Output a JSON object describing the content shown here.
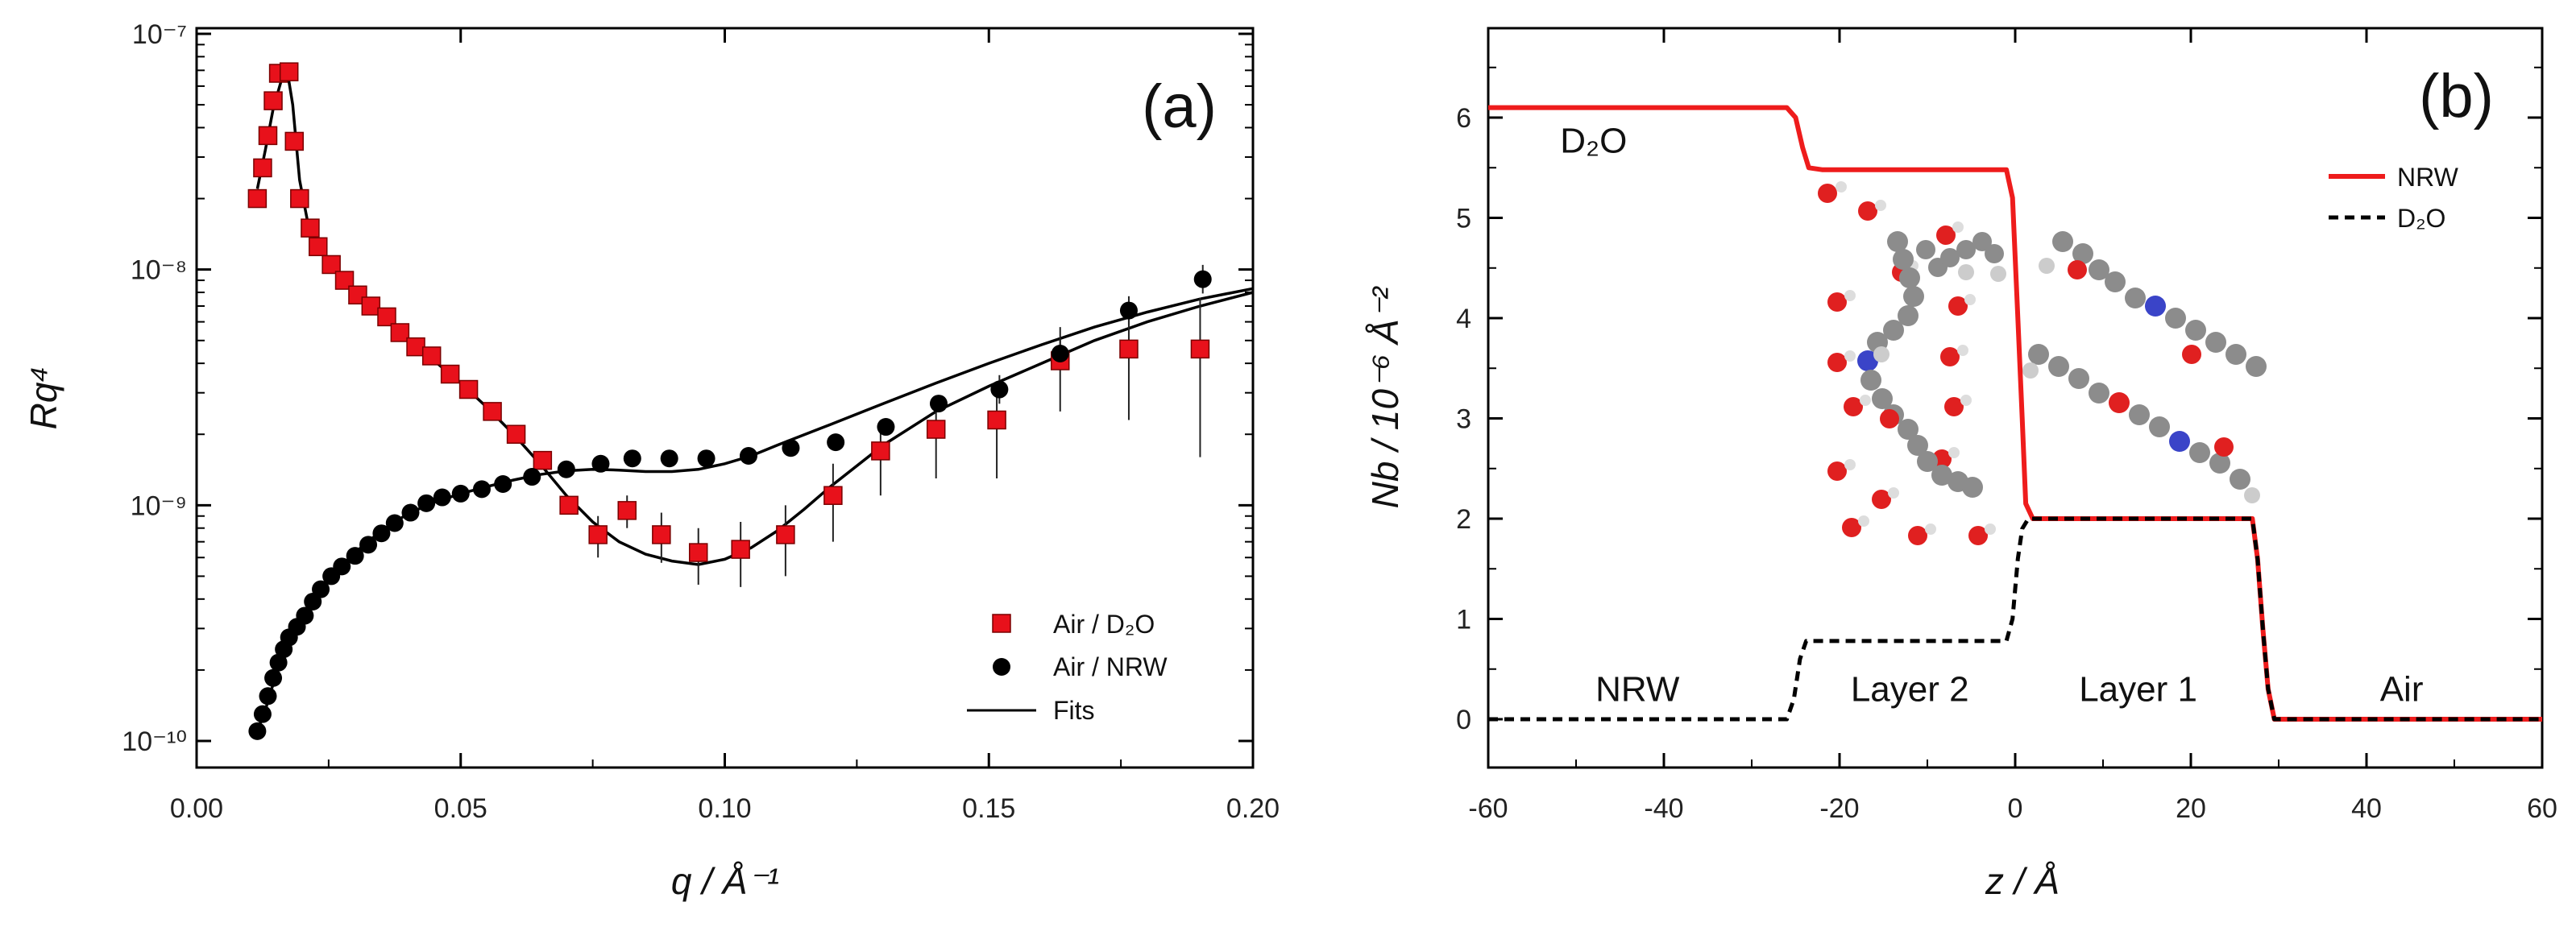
{
  "chart_data": [
    {
      "type": "scatter",
      "panel_label": "(a)",
      "xlabel": "q / Å⁻¹",
      "ylabel": "Rq⁴",
      "xlim": [
        0,
        0.2
      ],
      "ylim": [
        1e-10,
        1e-07
      ],
      "yscale": "log",
      "xticks": [
        {
          "value": 0.0,
          "label": "0.00"
        },
        {
          "value": 0.05,
          "label": "0.05"
        },
        {
          "value": 0.1,
          "label": "0.10"
        },
        {
          "value": 0.15,
          "label": "0.15"
        },
        {
          "value": 0.2,
          "label": "0.20"
        }
      ],
      "yticks": [
        {
          "value": 1e-10,
          "label": "10⁻¹⁰"
        },
        {
          "value": 1e-09,
          "label": "10⁻⁹"
        },
        {
          "value": 1e-08,
          "label": "10⁻⁸"
        },
        {
          "value": 1e-07,
          "label": "10⁻⁷"
        }
      ],
      "legend_position": "bottom-right",
      "series": [
        {
          "name": "Air / D₂O",
          "marker": "square",
          "color": "#e8111b",
          "points": [
            [
              0.0115,
              2e-08
            ],
            [
              0.0125,
              2.7e-08
            ],
            [
              0.0135,
              3.7e-08
            ],
            [
              0.0145,
              5.2e-08
            ],
            [
              0.0155,
              6.8e-08
            ],
            [
              0.0175,
              6.9e-08
            ],
            [
              0.0185,
              3.5e-08
            ],
            [
              0.0195,
              2e-08
            ],
            [
              0.0215,
              1.5e-08
            ],
            [
              0.023,
              1.25e-08
            ],
            [
              0.0255,
              1.05e-08
            ],
            [
              0.028,
              9e-09
            ],
            [
              0.0305,
              7.8e-09
            ],
            [
              0.033,
              7e-09
            ],
            [
              0.036,
              6.3e-09
            ],
            [
              0.0385,
              5.4e-09
            ],
            [
              0.0415,
              4.7e-09
            ],
            [
              0.0445,
              4.3e-09
            ],
            [
              0.048,
              3.6e-09
            ],
            [
              0.0515,
              3.1e-09
            ],
            [
              0.056,
              2.5e-09
            ],
            [
              0.0605,
              2e-09
            ],
            [
              0.0655,
              1.55e-09
            ],
            [
              0.0705,
              1e-09
            ],
            [
              0.076,
              7.5e-10
            ],
            [
              0.0815,
              9.5e-10
            ],
            [
              0.088,
              7.5e-10
            ],
            [
              0.095,
              6.3e-10
            ],
            [
              0.103,
              6.5e-10
            ],
            [
              0.1115,
              7.5e-10
            ],
            [
              0.1205,
              1.1e-09
            ],
            [
              0.1295,
              1.7e-09
            ],
            [
              0.14,
              2.1e-09
            ],
            [
              0.1515,
              2.3e-09
            ],
            [
              0.1635,
              4.1e-09
            ],
            [
              0.1765,
              4.6e-09
            ],
            [
              0.19,
              4.6e-09
            ]
          ],
          "errors": [
            [
              0,
              0
            ],
            [
              0,
              0
            ],
            [
              0,
              0
            ],
            [
              0,
              0
            ],
            [
              0,
              0
            ],
            [
              0,
              0
            ],
            [
              0,
              0
            ],
            [
              0,
              0
            ],
            [
              0,
              0
            ],
            [
              0,
              0
            ],
            [
              0,
              0
            ],
            [
              0,
              0
            ],
            [
              0,
              0
            ],
            [
              0,
              0
            ],
            [
              0,
              0
            ],
            [
              0,
              0
            ],
            [
              0,
              0
            ],
            [
              0,
              0
            ],
            [
              0,
              0
            ],
            [
              0,
              0
            ],
            [
              0,
              0
            ],
            [
              0,
              0
            ],
            [
              0,
              0
            ],
            [
              0,
              0
            ],
            [
              1.5e-10,
              1.5e-10
            ],
            [
              1.5e-10,
              1.5e-10
            ],
            [
              1.8e-10,
              1.8e-10
            ],
            [
              1.7e-10,
              1.7e-10
            ],
            [
              2e-10,
              2e-10
            ],
            [
              2.5e-10,
              2.5e-10
            ],
            [
              4e-10,
              4e-10
            ],
            [
              6e-10,
              6e-10
            ],
            [
              8e-10,
              8e-10
            ],
            [
              1e-09,
              1e-09
            ],
            [
              1.6e-09,
              1.6e-09
            ],
            [
              2.3e-09,
              2.3e-09
            ],
            [
              3e-09,
              3e-09
            ]
          ]
        },
        {
          "name": "Air / NRW",
          "marker": "circle",
          "color": "#000000",
          "points": [
            [
              0.0115,
              1.1e-10
            ],
            [
              0.0125,
              1.3e-10
            ],
            [
              0.0135,
              1.55e-10
            ],
            [
              0.0145,
              1.85e-10
            ],
            [
              0.0155,
              2.15e-10
            ],
            [
              0.0165,
              2.45e-10
            ],
            [
              0.0175,
              2.75e-10
            ],
            [
              0.019,
              3.05e-10
            ],
            [
              0.0205,
              3.4e-10
            ],
            [
              0.022,
              3.9e-10
            ],
            [
              0.0235,
              4.4e-10
            ],
            [
              0.0255,
              5e-10
            ],
            [
              0.0275,
              5.5e-10
            ],
            [
              0.03,
              6.1e-10
            ],
            [
              0.0325,
              6.8e-10
            ],
            [
              0.035,
              7.6e-10
            ],
            [
              0.0375,
              8.4e-10
            ],
            [
              0.0405,
              9.3e-10
            ],
            [
              0.0435,
              1.02e-09
            ],
            [
              0.0465,
              1.08e-09
            ],
            [
              0.05,
              1.12e-09
            ],
            [
              0.054,
              1.17e-09
            ],
            [
              0.058,
              1.23e-09
            ],
            [
              0.0635,
              1.32e-09
            ],
            [
              0.07,
              1.42e-09
            ],
            [
              0.0765,
              1.5e-09
            ],
            [
              0.0825,
              1.58e-09
            ],
            [
              0.0895,
              1.58e-09
            ],
            [
              0.0965,
              1.58e-09
            ],
            [
              0.1045,
              1.62e-09
            ],
            [
              0.1125,
              1.75e-09
            ],
            [
              0.121,
              1.85e-09
            ],
            [
              0.1305,
              2.15e-09
            ],
            [
              0.1405,
              2.7e-09
            ],
            [
              0.152,
              3.1e-09
            ],
            [
              0.1635,
              4.4e-09
            ],
            [
              0.1765,
              6.7e-09
            ],
            [
              0.1905,
              9.1e-09
            ]
          ]
        },
        {
          "name": "Fits",
          "marker": "line",
          "color": "#000000",
          "fits": [
            [
              [
                0.0115,
                2.2e-08
              ],
              [
                0.013,
                3.2e-08
              ],
              [
                0.0145,
                4.8e-08
              ],
              [
                0.016,
                6.3e-08
              ],
              [
                0.0172,
                6.9e-08
              ],
              [
                0.0182,
                5e-08
              ],
              [
                0.0195,
                2.4e-08
              ],
              [
                0.021,
                1.6e-08
              ],
              [
                0.023,
                1.25e-08
              ],
              [
                0.026,
                1e-08
              ],
              [
                0.03,
                8e-09
              ],
              [
                0.035,
                6.4e-09
              ],
              [
                0.04,
                5e-09
              ],
              [
                0.045,
                4.1e-09
              ],
              [
                0.05,
                3.3e-09
              ],
              [
                0.055,
                2.6e-09
              ],
              [
                0.06,
                2e-09
              ],
              [
                0.065,
                1.5e-09
              ],
              [
                0.07,
                1.1e-09
              ],
              [
                0.075,
                8.5e-10
              ],
              [
                0.08,
                7e-10
              ],
              [
                0.085,
                6.2e-10
              ],
              [
                0.09,
                5.8e-10
              ],
              [
                0.095,
                5.6e-10
              ],
              [
                0.1,
                5.9e-10
              ],
              [
                0.105,
                6.6e-10
              ],
              [
                0.11,
                7.8e-10
              ],
              [
                0.115,
                9.6e-10
              ],
              [
                0.12,
                1.2e-09
              ],
              [
                0.13,
                1.8e-09
              ],
              [
                0.14,
                2.5e-09
              ],
              [
                0.15,
                3.2e-09
              ],
              [
                0.16,
                4e-09
              ],
              [
                0.17,
                5e-09
              ],
              [
                0.18,
                6e-09
              ],
              [
                0.19,
                7e-09
              ],
              [
                0.2,
                8e-09
              ]
            ],
            [
              [
                0.0115,
                1.1e-10
              ],
              [
                0.013,
                1.35e-10
              ],
              [
                0.015,
                1.9e-10
              ],
              [
                0.017,
                2.55e-10
              ],
              [
                0.02,
                3.4e-10
              ],
              [
                0.025,
                4.9e-10
              ],
              [
                0.03,
                6.3e-10
              ],
              [
                0.035,
                7.8e-10
              ],
              [
                0.04,
                9.2e-10
              ],
              [
                0.045,
                1.03e-09
              ],
              [
                0.05,
                1.12e-09
              ],
              [
                0.055,
                1.2e-09
              ],
              [
                0.06,
                1.28e-09
              ],
              [
                0.065,
                1.35e-09
              ],
              [
                0.07,
                1.4e-09
              ],
              [
                0.075,
                1.42e-09
              ],
              [
                0.08,
                1.41e-09
              ],
              [
                0.085,
                1.39e-09
              ],
              [
                0.09,
                1.39e-09
              ],
              [
                0.095,
                1.42e-09
              ],
              [
                0.1,
                1.5e-09
              ],
              [
                0.105,
                1.62e-09
              ],
              [
                0.11,
                1.8e-09
              ],
              [
                0.12,
                2.2e-09
              ],
              [
                0.13,
                2.7e-09
              ],
              [
                0.14,
                3.3e-09
              ],
              [
                0.15,
                4e-09
              ],
              [
                0.16,
                4.8e-09
              ],
              [
                0.17,
                5.7e-09
              ],
              [
                0.18,
                6.6e-09
              ],
              [
                0.19,
                7.5e-09
              ],
              [
                0.2,
                8.3e-09
              ]
            ]
          ]
        }
      ],
      "legend": [
        {
          "label": "Air / D₂O",
          "marker": "square",
          "color": "#e8111b"
        },
        {
          "label": "Air / NRW",
          "marker": "circle",
          "color": "#000000"
        },
        {
          "label": "Fits",
          "marker": "line",
          "color": "#000000"
        }
      ]
    },
    {
      "type": "line",
      "panel_label": "(b)",
      "xlabel": "z / Å",
      "ylabel": "Nb / 10⁻⁶ Å⁻²",
      "xlim": [
        -60,
        60
      ],
      "ylim": [
        -0.5,
        7
      ],
      "xticks": [
        {
          "value": -60,
          "label": "-60"
        },
        {
          "value": -40,
          "label": "-40"
        },
        {
          "value": -20,
          "label": "-20"
        },
        {
          "value": 0,
          "label": "0"
        },
        {
          "value": 20,
          "label": "20"
        },
        {
          "value": 40,
          "label": "40"
        },
        {
          "value": 60,
          "label": "60"
        }
      ],
      "yticks": [
        {
          "value": 0,
          "label": "0"
        },
        {
          "value": 1,
          "label": "1"
        },
        {
          "value": 2,
          "label": "2"
        },
        {
          "value": 3,
          "label": "3"
        },
        {
          "value": 4,
          "label": "4"
        },
        {
          "value": 5,
          "label": "5"
        },
        {
          "value": 6,
          "label": "6"
        }
      ],
      "legend_position": "top-right",
      "series": [
        {
          "name": "NRW",
          "style": "solid",
          "color": "#ee1c1c",
          "points": [
            [
              -60,
              6.1
            ],
            [
              -26,
              6.1
            ],
            [
              -25,
              6.0
            ],
            [
              -24.2,
              5.7
            ],
            [
              -23.5,
              5.5
            ],
            [
              -22,
              5.48
            ],
            [
              -1,
              5.48
            ],
            [
              -0.3,
              5.2
            ],
            [
              0.3,
              4.0
            ],
            [
              0.8,
              3.0
            ],
            [
              1.2,
              2.15
            ],
            [
              2,
              2.0
            ],
            [
              27,
              2.0
            ],
            [
              27.6,
              1.6
            ],
            [
              28.2,
              0.9
            ],
            [
              28.8,
              0.3
            ],
            [
              29.5,
              0.0
            ],
            [
              60,
              0.0
            ]
          ]
        },
        {
          "name": "D₂O",
          "style": "dashed",
          "color": "#000000",
          "points": [
            [
              -60,
              0.0
            ],
            [
              -26,
              0.0
            ],
            [
              -25.2,
              0.2
            ],
            [
              -24.5,
              0.6
            ],
            [
              -23.8,
              0.78
            ],
            [
              -22,
              0.78
            ],
            [
              -1,
              0.78
            ],
            [
              -0.3,
              1.0
            ],
            [
              0.3,
              1.6
            ],
            [
              0.8,
              1.9
            ],
            [
              1.5,
              2.0
            ],
            [
              27,
              2.0
            ],
            [
              27.6,
              1.6
            ],
            [
              28.2,
              0.9
            ],
            [
              28.8,
              0.3
            ],
            [
              29.5,
              0.0
            ],
            [
              60,
              0.0
            ]
          ]
        }
      ],
      "legend": [
        {
          "label": "NRW",
          "style": "solid",
          "color": "#ee1c1c"
        },
        {
          "label": "D₂O",
          "style": "dashed",
          "color": "#000000"
        }
      ],
      "annotations": [
        {
          "text": "D₂O",
          "x": -48,
          "y": 5.65
        },
        {
          "text": "NRW",
          "x": -43,
          "y": 0.18
        },
        {
          "text": "Layer 2",
          "x": -12,
          "y": 0.18
        },
        {
          "text": "Layer 1",
          "x": 14,
          "y": 0.18
        },
        {
          "text": "Air",
          "x": 44,
          "y": 0.18
        }
      ]
    }
  ]
}
